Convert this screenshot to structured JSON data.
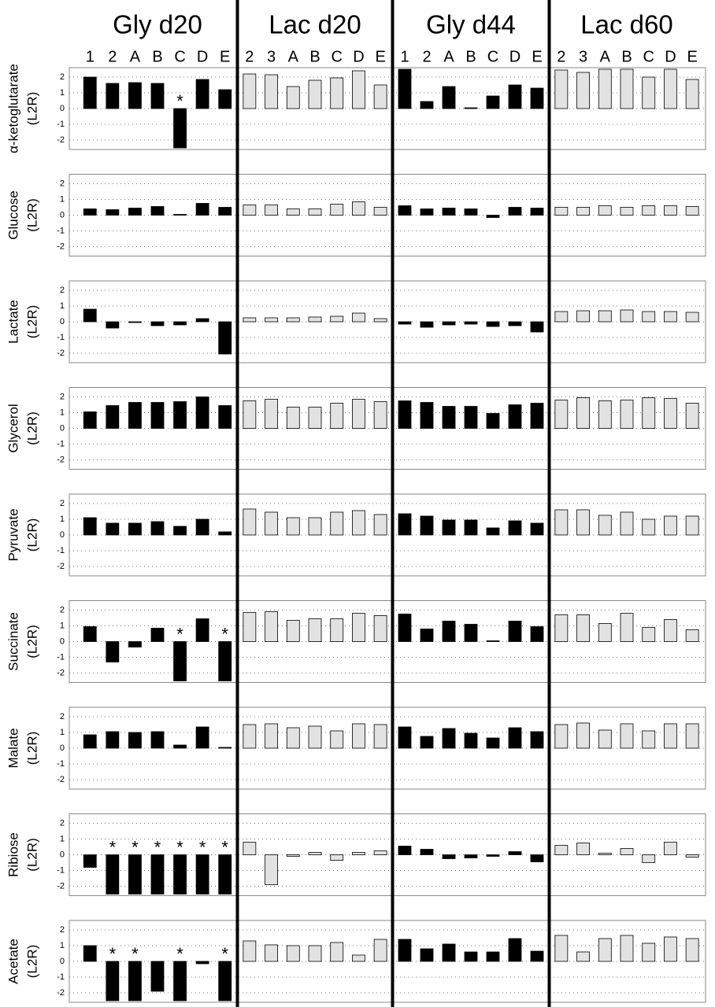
{
  "chart_data": {
    "type": "bar",
    "groups": [
      {
        "name": "Gly d20",
        "color": "#000000",
        "categories": [
          "1",
          "2",
          "A",
          "B",
          "C",
          "D",
          "E"
        ]
      },
      {
        "name": "Lac d20",
        "color": "#e2e2e2",
        "categories": [
          "2",
          "3",
          "A",
          "B",
          "C",
          "D",
          "E"
        ]
      },
      {
        "name": "Gly d44",
        "color": "#000000",
        "categories": [
          "1",
          "2",
          "A",
          "B",
          "C",
          "D",
          "E"
        ]
      },
      {
        "name": "Lac d60",
        "color": "#e2e2e2",
        "categories": [
          "2",
          "3",
          "A",
          "B",
          "C",
          "D",
          "E"
        ]
      }
    ],
    "ylim": [
      -2.5,
      2.5
    ],
    "yticks": [
      -2,
      -1,
      0,
      1,
      2
    ],
    "grid": true,
    "panels": [
      {
        "ylabel": [
          "α-ketoglutarate",
          "(L2R)"
        ],
        "values": [
          [
            2.0,
            1.6,
            1.65,
            1.6,
            -2.5,
            1.85,
            1.2
          ],
          [
            2.2,
            2.15,
            1.4,
            1.8,
            1.95,
            2.4,
            1.5
          ],
          [
            2.5,
            0.45,
            1.4,
            0.05,
            0.8,
            1.5,
            1.3
          ],
          [
            2.45,
            2.3,
            2.5,
            2.5,
            2.0,
            2.5,
            1.85
          ]
        ],
        "markers": [
          [
            null,
            null,
            null,
            null,
            "*",
            null,
            null
          ],
          [
            null,
            null,
            null,
            null,
            null,
            null,
            null
          ],
          [
            null,
            null,
            null,
            null,
            null,
            null,
            null
          ],
          [
            null,
            null,
            null,
            null,
            null,
            null,
            null
          ]
        ]
      },
      {
        "ylabel": [
          "Glucose",
          "(L2R)"
        ],
        "values": [
          [
            0.4,
            0.35,
            0.45,
            0.55,
            0.05,
            0.75,
            0.5
          ],
          [
            0.65,
            0.65,
            0.4,
            0.4,
            0.7,
            0.85,
            0.5
          ],
          [
            0.6,
            0.4,
            0.45,
            0.4,
            -0.15,
            0.5,
            0.45
          ],
          [
            0.5,
            0.5,
            0.6,
            0.5,
            0.6,
            0.6,
            0.55
          ]
        ]
      },
      {
        "ylabel": [
          "Lactate",
          "(L2R)"
        ],
        "values": [
          [
            0.8,
            -0.4,
            -0.05,
            -0.25,
            -0.2,
            0.2,
            -2.05
          ],
          [
            0.25,
            0.25,
            0.25,
            0.3,
            0.35,
            0.55,
            0.2
          ],
          [
            -0.15,
            -0.35,
            -0.2,
            -0.15,
            -0.3,
            -0.25,
            -0.65
          ],
          [
            0.65,
            0.7,
            0.7,
            0.75,
            0.65,
            0.65,
            0.6
          ]
        ]
      },
      {
        "ylabel": [
          "Glycerol",
          "(L2R)"
        ],
        "values": [
          [
            1.05,
            1.45,
            1.65,
            1.65,
            1.7,
            2.0,
            1.45
          ],
          [
            1.75,
            1.85,
            1.35,
            1.35,
            1.6,
            1.85,
            1.7
          ],
          [
            1.75,
            1.65,
            1.4,
            1.4,
            0.95,
            1.5,
            1.6
          ],
          [
            1.8,
            1.95,
            1.75,
            1.8,
            1.95,
            1.9,
            1.6
          ]
        ]
      },
      {
        "ylabel": [
          "Pyruvate",
          "(L2R)"
        ],
        "values": [
          [
            1.1,
            0.75,
            0.75,
            0.85,
            0.55,
            1.0,
            0.2
          ],
          [
            1.65,
            1.45,
            1.1,
            1.1,
            1.45,
            1.55,
            1.3
          ],
          [
            1.35,
            1.2,
            0.95,
            0.95,
            0.45,
            0.9,
            0.75
          ],
          [
            1.6,
            1.6,
            1.25,
            1.45,
            1.0,
            1.2,
            1.2
          ]
        ]
      },
      {
        "ylabel": [
          "Succinate",
          "(L2R)"
        ],
        "values": [
          [
            0.95,
            -1.3,
            -0.35,
            0.85,
            -2.5,
            1.45,
            -2.5
          ],
          [
            1.85,
            1.9,
            1.35,
            1.45,
            1.45,
            1.8,
            1.65
          ],
          [
            1.75,
            0.8,
            1.3,
            1.1,
            0.05,
            1.3,
            0.95
          ],
          [
            1.7,
            1.7,
            1.15,
            1.8,
            0.9,
            1.4,
            0.75
          ]
        ],
        "markers": [
          [
            null,
            null,
            null,
            null,
            "*",
            null,
            "*"
          ],
          [
            null,
            null,
            null,
            null,
            null,
            null,
            null
          ],
          [
            null,
            null,
            null,
            null,
            null,
            null,
            null
          ],
          [
            null,
            null,
            null,
            null,
            null,
            null,
            null
          ]
        ]
      },
      {
        "ylabel": [
          "Malate",
          "(L2R)"
        ],
        "values": [
          [
            0.85,
            1.05,
            1.0,
            1.05,
            0.2,
            1.35,
            0.02
          ],
          [
            1.5,
            1.55,
            1.3,
            1.4,
            1.1,
            1.55,
            1.5
          ],
          [
            1.35,
            0.75,
            1.25,
            0.95,
            0.65,
            1.3,
            1.05
          ],
          [
            1.5,
            1.6,
            1.15,
            1.55,
            1.1,
            1.55,
            1.55
          ]
        ]
      },
      {
        "ylabel": [
          "Ribiose",
          "(L2R)"
        ],
        "values": [
          [
            -0.8,
            -2.5,
            -2.5,
            -2.5,
            -2.5,
            -2.5,
            -2.5
          ],
          [
            0.8,
            -1.9,
            -0.1,
            0.15,
            -0.35,
            0.15,
            0.25
          ],
          [
            0.55,
            0.35,
            -0.25,
            -0.2,
            -0.1,
            0.2,
            -0.45
          ],
          [
            0.6,
            0.75,
            0.1,
            0.4,
            -0.5,
            0.8,
            -0.15
          ]
        ],
        "markers": [
          [
            null,
            "*",
            "*",
            "*",
            "*",
            "*",
            "*"
          ],
          [
            null,
            null,
            null,
            null,
            null,
            null,
            null
          ],
          [
            null,
            null,
            null,
            null,
            null,
            null,
            null
          ],
          [
            null,
            null,
            null,
            null,
            null,
            null,
            null
          ]
        ]
      },
      {
        "ylabel": [
          "Acetate",
          "(L2R)"
        ],
        "values": [
          [
            1.0,
            -2.5,
            -2.5,
            -1.9,
            -2.5,
            -0.15,
            -2.5
          ],
          [
            1.3,
            1.05,
            1.0,
            1.0,
            1.2,
            0.4,
            1.4
          ],
          [
            1.4,
            0.8,
            1.1,
            0.6,
            0.6,
            1.45,
            0.65
          ],
          [
            1.65,
            0.6,
            1.45,
            1.65,
            1.15,
            1.55,
            1.45
          ]
        ],
        "markers": [
          [
            null,
            "*",
            "*",
            null,
            "*",
            null,
            "*"
          ],
          [
            null,
            null,
            null,
            null,
            null,
            null,
            null
          ],
          [
            null,
            null,
            null,
            null,
            null,
            null,
            null
          ],
          [
            null,
            null,
            null,
            null,
            null,
            null,
            null
          ]
        ]
      }
    ]
  }
}
